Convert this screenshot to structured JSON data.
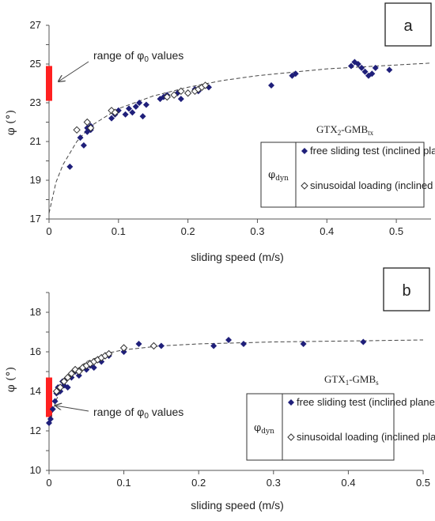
{
  "chart_data": [
    {
      "type": "scatter",
      "panel_label": "a",
      "material": "GTX2-GMBtx",
      "xlabel": "sliding speed (m/s)",
      "ylabel": "φ (°)",
      "xlim": [
        0,
        0.55
      ],
      "ylim": [
        17,
        27
      ],
      "x_ticks": [
        "0",
        "0.1",
        "0.2",
        "0.3",
        "0.4",
        "0.5"
      ],
      "y_ticks": [
        "17",
        "19",
        "21",
        "23",
        "25",
        "27"
      ],
      "grid": false,
      "legend_position": "bottom-right",
      "legend_group_label": "φdyn",
      "range_annotation": "range of φ0 values",
      "phi0_range": [
        23.1,
        24.9
      ],
      "trend_curve": {
        "style": "dashed",
        "x": [
          0,
          0.01,
          0.02,
          0.04,
          0.06,
          0.1,
          0.15,
          0.2,
          0.25,
          0.3,
          0.4,
          0.5,
          0.55
        ],
        "y": [
          17.3,
          18.9,
          19.8,
          21.0,
          21.8,
          22.7,
          23.35,
          23.8,
          24.15,
          24.4,
          24.75,
          24.95,
          25.05
        ]
      },
      "series": [
        {
          "name": "free sliding test (inclined plane)",
          "marker": "filled-diamond",
          "color": "#1f1f7a",
          "x": [
            0.03,
            0.045,
            0.05,
            0.055,
            0.055,
            0.06,
            0.06,
            0.09,
            0.095,
            0.1,
            0.11,
            0.115,
            0.12,
            0.125,
            0.13,
            0.135,
            0.14,
            0.16,
            0.165,
            0.17,
            0.185,
            0.19,
            0.2,
            0.21,
            0.215,
            0.23,
            0.32,
            0.35,
            0.355,
            0.435,
            0.44,
            0.445,
            0.45,
            0.455,
            0.46,
            0.465,
            0.47,
            0.49
          ],
          "y": [
            19.7,
            21.2,
            20.8,
            21.5,
            21.7,
            21.6,
            21.8,
            22.2,
            22.4,
            22.6,
            22.4,
            22.7,
            22.5,
            22.8,
            23.0,
            22.3,
            22.9,
            23.2,
            23.3,
            23.4,
            23.5,
            23.2,
            23.5,
            23.7,
            23.6,
            23.8,
            23.9,
            24.4,
            24.5,
            24.9,
            25.1,
            25.0,
            24.8,
            24.6,
            24.4,
            24.5,
            24.8,
            24.7
          ]
        },
        {
          "name": "sinusoidal loading (inclined plane)",
          "marker": "open-diamond",
          "color": "#333333",
          "x": [
            0.04,
            0.055,
            0.06,
            0.09,
            0.095,
            0.17,
            0.18,
            0.19,
            0.2,
            0.21,
            0.215,
            0.22,
            0.225
          ],
          "y": [
            21.6,
            22.0,
            21.7,
            22.6,
            22.5,
            23.3,
            23.4,
            23.6,
            23.5,
            23.6,
            23.7,
            23.8,
            23.9
          ]
        }
      ]
    },
    {
      "type": "scatter",
      "panel_label": "b",
      "material": "GTX1-GMBs",
      "xlabel": "sliding speed (m/s)",
      "ylabel": "φ (°)",
      "xlim": [
        0,
        0.5
      ],
      "ylim": [
        10,
        19
      ],
      "x_ticks": [
        "0",
        "0.1",
        "0.2",
        "0.3",
        "0.4",
        "0.5"
      ],
      "y_ticks": [
        "10",
        "12",
        "14",
        "16",
        "18"
      ],
      "grid": false,
      "legend_position": "bottom-right",
      "legend_group_label": "φdyn",
      "range_annotation": "range of φ0 values",
      "phi0_range": [
        12.7,
        14.7
      ],
      "trend_curve": {
        "style": "dashed",
        "x": [
          0,
          0.005,
          0.01,
          0.02,
          0.03,
          0.05,
          0.08,
          0.1,
          0.15,
          0.2,
          0.3,
          0.4,
          0.5
        ],
        "y": [
          12.3,
          13.0,
          13.6,
          14.4,
          14.9,
          15.5,
          15.95,
          16.1,
          16.3,
          16.4,
          16.5,
          16.55,
          16.6
        ]
      },
      "series": [
        {
          "name": "free sliding test (inclined plane)",
          "marker": "filled-diamond",
          "color": "#1f1f7a",
          "x": [
            0.0,
            0.002,
            0.005,
            0.008,
            0.01,
            0.012,
            0.015,
            0.018,
            0.02,
            0.022,
            0.025,
            0.03,
            0.035,
            0.04,
            0.05,
            0.055,
            0.06,
            0.065,
            0.07,
            0.08,
            0.1,
            0.12,
            0.15,
            0.22,
            0.24,
            0.26,
            0.34,
            0.42
          ],
          "y": [
            12.4,
            12.6,
            13.1,
            13.5,
            13.9,
            14.2,
            14.0,
            14.5,
            14.3,
            14.6,
            14.2,
            14.7,
            15.0,
            14.8,
            15.1,
            15.3,
            15.2,
            15.6,
            15.5,
            15.8,
            16.0,
            16.4,
            16.3,
            16.3,
            16.6,
            16.4,
            16.4,
            16.5
          ]
        },
        {
          "name": "sinusoidal loading (inclined plane)",
          "marker": "open-diamond",
          "color": "#333333",
          "x": [
            0.01,
            0.015,
            0.02,
            0.025,
            0.03,
            0.035,
            0.04,
            0.045,
            0.05,
            0.055,
            0.06,
            0.065,
            0.07,
            0.075,
            0.08,
            0.1,
            0.14
          ],
          "y": [
            14.0,
            14.2,
            14.5,
            14.7,
            14.9,
            15.1,
            15.0,
            15.2,
            15.3,
            15.4,
            15.5,
            15.6,
            15.7,
            15.8,
            15.9,
            16.2,
            16.3
          ]
        }
      ]
    }
  ]
}
